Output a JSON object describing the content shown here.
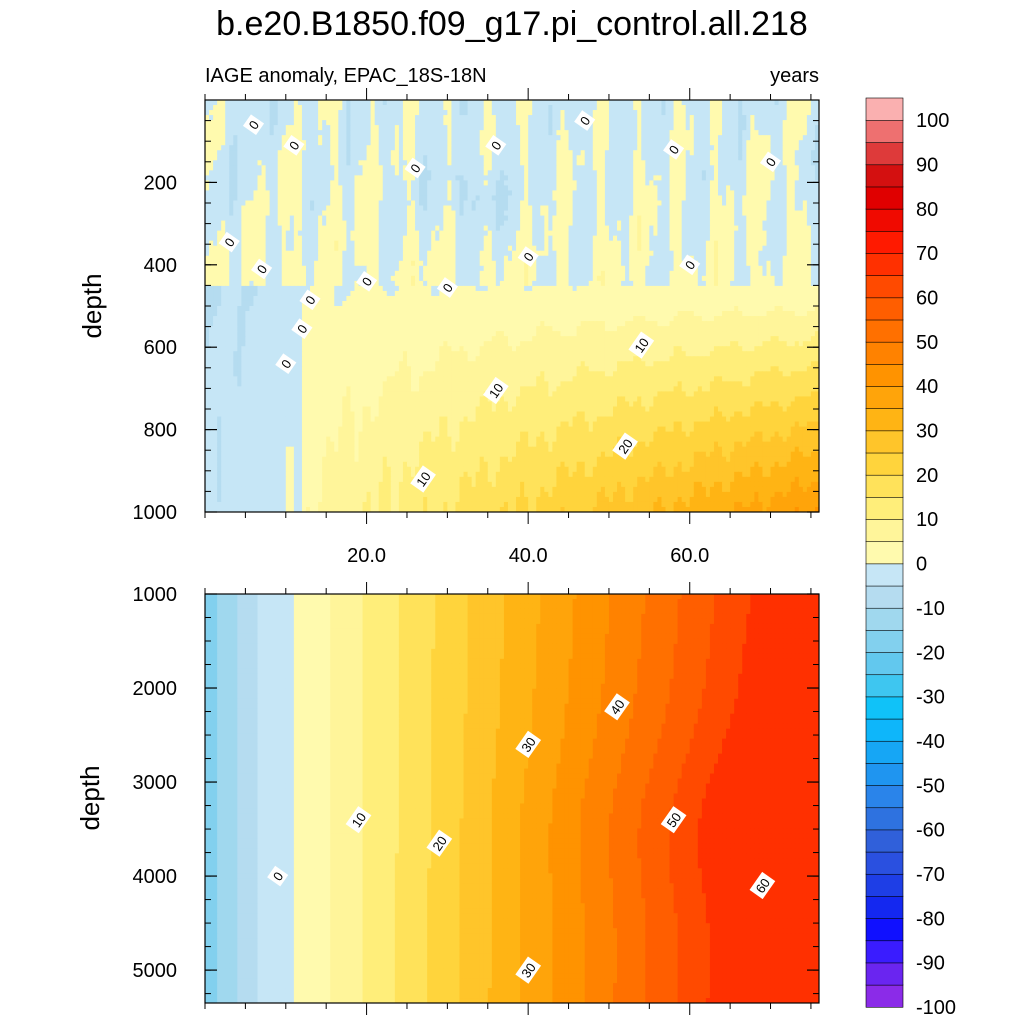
{
  "title": "b.e20.B1850.f09_g17.pi_control.all.218",
  "subtitle_left": "IAGE anomaly, EPAC_18S-18N",
  "subtitle_right": "years",
  "colors": {
    "levels": [
      -100,
      -95,
      -90,
      -85,
      -80,
      -75,
      -70,
      -65,
      -60,
      -55,
      -50,
      -45,
      -40,
      -35,
      -30,
      -25,
      -20,
      -15,
      -10,
      -5,
      0,
      5,
      10,
      15,
      20,
      25,
      30,
      35,
      40,
      45,
      50,
      55,
      60,
      65,
      70,
      75,
      80,
      85,
      90,
      95,
      100
    ],
    "fills": [
      "#8b2be8",
      "#6a25f0",
      "#3a1cff",
      "#1010ff",
      "#1428f0",
      "#1e3ee6",
      "#2a50e0",
      "#3060da",
      "#2e72e0",
      "#2a84ea",
      "#1f95f0",
      "#16a6f5",
      "#0eb6fa",
      "#10c2f8",
      "#3ec6f0",
      "#62c8ee",
      "#82d0ee",
      "#a0d8ee",
      "#b5dcf0",
      "#c6e6f6",
      "#fffaae",
      "#fff59a",
      "#ffee7a",
      "#ffe25a",
      "#ffd43c",
      "#ffc52a",
      "#ffb414",
      "#ffa40a",
      "#ff9300",
      "#ff8200",
      "#ff7000",
      "#ff5e00",
      "#ff4a00",
      "#ff3000",
      "#ff1a00",
      "#f00a00",
      "#e00000",
      "#d41010",
      "#de3a3a",
      "#ee7070",
      "#fab0b0"
    ]
  },
  "colorbar": {
    "labels": [
      "100",
      "90",
      "80",
      "70",
      "60",
      "50",
      "40",
      "30",
      "20",
      "10",
      "0",
      "-10",
      "-20",
      "-30",
      "-40",
      "-50",
      "-60",
      "-70",
      "-80",
      "-90",
      "-100"
    ]
  },
  "chart_data": [
    {
      "type": "heatmap",
      "name": "upper panel",
      "ylabel": "depth",
      "xlim": [
        0,
        76
      ],
      "ylim": [
        1000,
        0
      ],
      "x_ticks": [
        20,
        40,
        60
      ],
      "x_tick_labels": [
        "20.0",
        "40.0",
        "60.0"
      ],
      "y_ticks": [
        200,
        400,
        600,
        800,
        1000
      ],
      "y_tick_labels": [
        "200",
        "400",
        "600",
        "800",
        "1000"
      ],
      "contour_labels": [
        {
          "text": "0",
          "x": 6,
          "y": 60
        },
        {
          "text": "0",
          "x": 11,
          "y": 110
        },
        {
          "text": "0",
          "x": 26,
          "y": 165
        },
        {
          "text": "0",
          "x": 36,
          "y": 110
        },
        {
          "text": "0",
          "x": 47,
          "y": 50
        },
        {
          "text": "0",
          "x": 58,
          "y": 120
        },
        {
          "text": "0",
          "x": 70,
          "y": 150
        },
        {
          "text": "0",
          "x": 3,
          "y": 345
        },
        {
          "text": "0",
          "x": 7,
          "y": 410
        },
        {
          "text": "0",
          "x": 20,
          "y": 440
        },
        {
          "text": "0",
          "x": 13,
          "y": 485
        },
        {
          "text": "0",
          "x": 12,
          "y": 555
        },
        {
          "text": "0",
          "x": 10,
          "y": 640
        },
        {
          "text": "0",
          "x": 30,
          "y": 455
        },
        {
          "text": "0",
          "x": 40,
          "y": 380
        },
        {
          "text": "0",
          "x": 60,
          "y": 400
        },
        {
          "text": "10",
          "x": 54,
          "y": 595
        },
        {
          "text": "10",
          "x": 36,
          "y": 705
        },
        {
          "text": "10",
          "x": 27,
          "y": 920
        },
        {
          "text": "20",
          "x": 52,
          "y": 840
        }
      ]
    },
    {
      "type": "heatmap",
      "name": "lower panel",
      "ylabel": "depth",
      "xlim": [
        0,
        76
      ],
      "ylim": [
        5350,
        1000
      ],
      "y_ticks": [
        1000,
        2000,
        3000,
        4000,
        5000
      ],
      "y_tick_labels": [
        "1000",
        "2000",
        "3000",
        "4000",
        "5000"
      ],
      "contour_labels": [
        {
          "text": "0",
          "x": 9,
          "y": 4000
        },
        {
          "text": "10",
          "x": 19,
          "y": 3400
        },
        {
          "text": "20",
          "x": 29,
          "y": 3650
        },
        {
          "text": "30",
          "x": 40,
          "y": 2600
        },
        {
          "text": "30",
          "x": 40,
          "y": 5000
        },
        {
          "text": "40",
          "x": 51,
          "y": 2200
        },
        {
          "text": "50",
          "x": 58,
          "y": 3400
        },
        {
          "text": "60",
          "x": 69,
          "y": 4100
        }
      ]
    }
  ]
}
